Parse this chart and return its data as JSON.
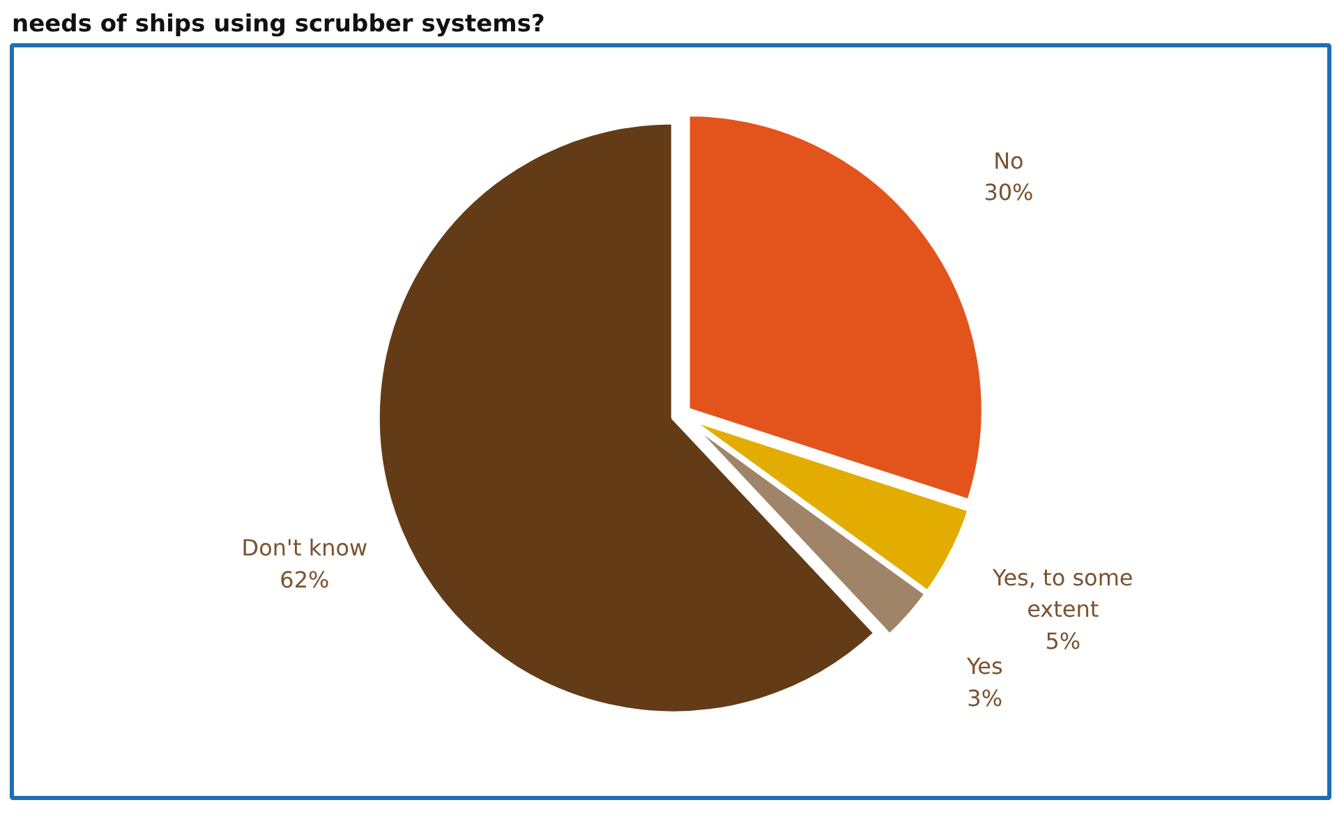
{
  "chart_data": {
    "type": "pie",
    "title": "needs of ships using scrubber systems?",
    "categories": [
      "No",
      "Yes, to some extent",
      "Yes",
      "Don't know"
    ],
    "values": [
      30,
      5,
      3,
      62
    ],
    "colors": [
      "#e3541c",
      "#e3ac00",
      "#9f8468",
      "#633b16"
    ],
    "value_labels": [
      "30%",
      "5%",
      "3%",
      "62%"
    ]
  }
}
